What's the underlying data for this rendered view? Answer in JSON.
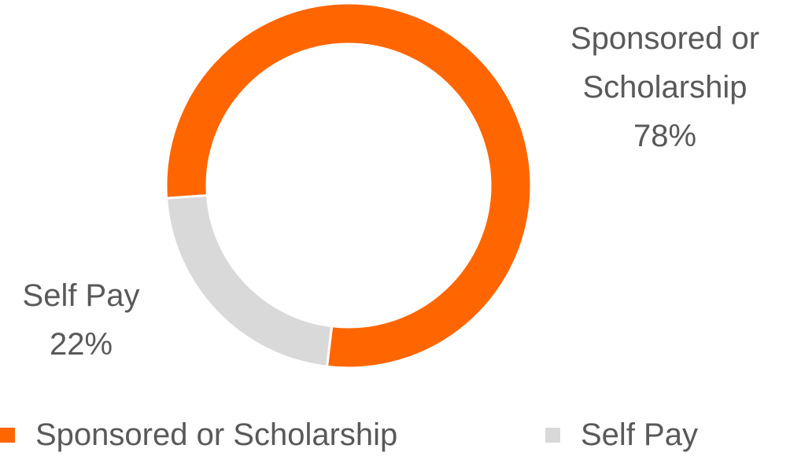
{
  "chart_data": {
    "type": "donut",
    "categories": [
      "Sponsored or Scholarship",
      "Self Pay"
    ],
    "values": [
      78,
      22
    ],
    "value_labels": [
      "78%",
      "22%"
    ],
    "colors": [
      "#ff6600",
      "#d9d9d9"
    ],
    "legend": "bottom"
  }
}
